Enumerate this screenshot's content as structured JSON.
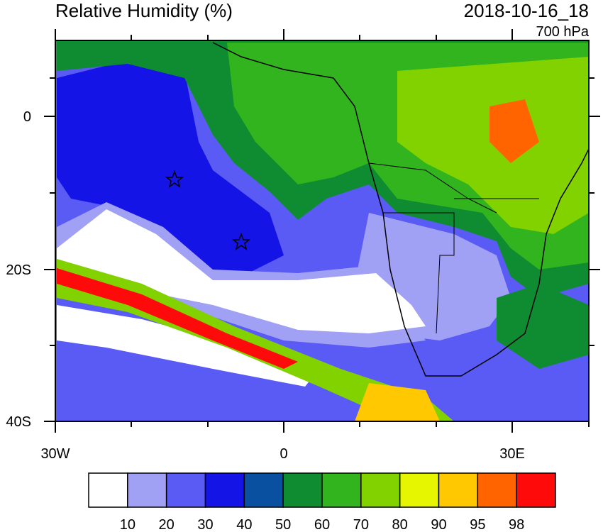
{
  "title": "Relative Humidity (%)",
  "time": "2018-10-16_18",
  "level": "700 hPa",
  "axes": {
    "y_labels": [
      "0",
      "20S",
      "40S"
    ],
    "x_labels": [
      "30W",
      "0",
      "30E"
    ]
  },
  "colorbar": {
    "levels": [
      10,
      20,
      30,
      40,
      50,
      60,
      70,
      80,
      90,
      95,
      98
    ],
    "colors": [
      "#ffffff",
      "#a0a0f5",
      "#5a5af5",
      "#1414e6",
      "#0a50a0",
      "#0f8c32",
      "#32b41e",
      "#82d200",
      "#e6f500",
      "#ffc800",
      "#ff6400",
      "#ff0a0a"
    ]
  }
}
